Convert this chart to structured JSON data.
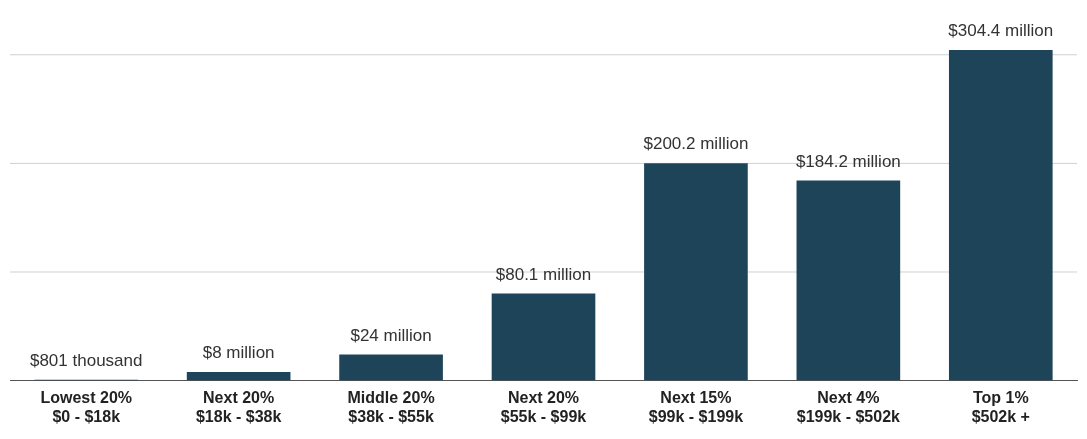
{
  "chart_data": {
    "type": "bar",
    "categories": [
      "Lowest 20%\n$0 - $18k",
      "Next 20%\n$18k - $38k",
      "Middle 20%\n$38k - $55k",
      "Next 20%\n$55k - $99k",
      "Next 15%\n$99k - $199k",
      "Next 4%\n$199k - $502k",
      "Top 1%\n$502k +"
    ],
    "values": [
      801000,
      8000000,
      24000000,
      80100000,
      200200000,
      184200000,
      304400000
    ],
    "value_labels": [
      "$801 thousand",
      "$8 million",
      "$24 million",
      "$80.1 million",
      "$200.2 million",
      "$184.2 million",
      "$304.4 million"
    ],
    "color": "#1e4459",
    "ref_lines": [
      {
        "axis": "y",
        "value": 100000000,
        "color": "#d0d0d0"
      },
      {
        "axis": "y",
        "value": 200000000,
        "color": "#d0d0d0"
      },
      {
        "axis": "y",
        "value": 300000000,
        "color": "#d0d0d0"
      }
    ],
    "tick_labels": "x"
  }
}
